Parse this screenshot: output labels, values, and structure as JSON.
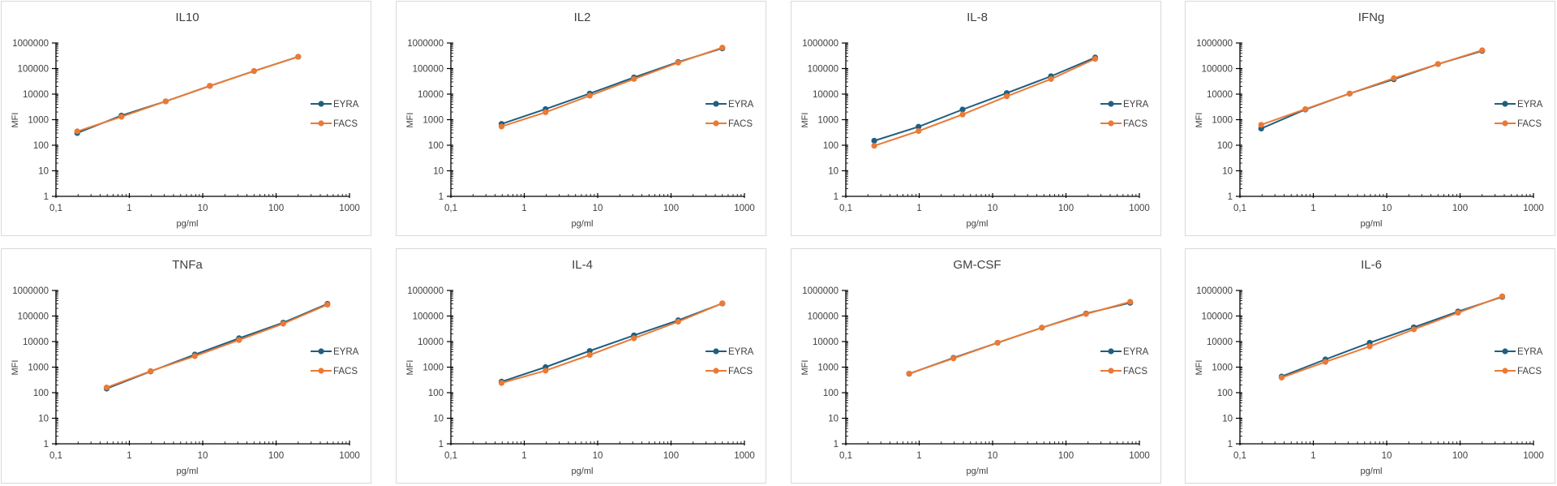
{
  "legend": {
    "series": [
      {
        "name": "EYRA",
        "color": "#1f5f80"
      },
      {
        "name": "FACS",
        "color": "#ea7a36"
      }
    ]
  },
  "chart_data": [
    {
      "type": "line",
      "title": "IL10",
      "xlabel": "pg/ml",
      "ylabel": "MFI",
      "xscale": "log",
      "yscale": "log",
      "xlim": [
        0.1,
        1000
      ],
      "ylim": [
        1,
        1000000
      ],
      "xticks": [
        "0,1",
        "1",
        "10",
        "100",
        "1000"
      ],
      "yticks": [
        "1",
        "10",
        "100",
        "1000",
        "10000",
        "100000",
        "1000000"
      ],
      "legend": "right",
      "x": [
        0.195,
        0.78,
        3.125,
        12.5,
        50,
        200
      ],
      "series": [
        {
          "name": "EYRA",
          "values": [
            300,
            1450,
            5200,
            21000,
            80000,
            290000
          ]
        },
        {
          "name": "FACS",
          "values": [
            350,
            1300,
            5200,
            21000,
            80000,
            290000
          ]
        }
      ]
    },
    {
      "type": "line",
      "title": "IL2",
      "xlabel": "pg/ml",
      "ylabel": "MFI",
      "xscale": "log",
      "yscale": "log",
      "xlim": [
        0.1,
        1000
      ],
      "ylim": [
        1,
        1000000
      ],
      "xticks": [
        "0,1",
        "1",
        "10",
        "100",
        "1000"
      ],
      "yticks": [
        "1",
        "10",
        "100",
        "1000",
        "10000",
        "100000",
        "1000000"
      ],
      "legend": "right",
      "x": [
        0.49,
        1.95,
        7.8,
        31.25,
        125,
        500
      ],
      "series": [
        {
          "name": "EYRA",
          "values": [
            680,
            2600,
            10500,
            45000,
            180000,
            620000
          ]
        },
        {
          "name": "FACS",
          "values": [
            540,
            1950,
            8700,
            39000,
            170000,
            660000
          ]
        }
      ]
    },
    {
      "type": "line",
      "title": "IL-8",
      "xlabel": "pg/ml",
      "ylabel": "MFI",
      "xscale": "log",
      "yscale": "log",
      "xlim": [
        0.1,
        1000
      ],
      "ylim": [
        1,
        1000000
      ],
      "xticks": [
        "0,1",
        "1",
        "10",
        "100",
        "1000"
      ],
      "yticks": [
        "1",
        "10",
        "100",
        "1000",
        "10000",
        "100000",
        "1000000"
      ],
      "legend": "right",
      "x": [
        0.244,
        0.98,
        3.9,
        15.6,
        62.5,
        250
      ],
      "series": [
        {
          "name": "EYRA",
          "values": [
            150,
            530,
            2500,
            11000,
            50000,
            270000
          ]
        },
        {
          "name": "FACS",
          "values": [
            95,
            360,
            1600,
            8200,
            39000,
            240000
          ]
        }
      ]
    },
    {
      "type": "line",
      "title": "IFNg",
      "xlabel": "pg/ml",
      "ylabel": "MFI",
      "xscale": "log",
      "yscale": "log",
      "xlim": [
        0.1,
        1000
      ],
      "ylim": [
        1,
        1000000
      ],
      "xticks": [
        "0,1",
        "1",
        "10",
        "100",
        "1000"
      ],
      "yticks": [
        "1",
        "10",
        "100",
        "1000",
        "10000",
        "100000",
        "1000000"
      ],
      "legend": "right",
      "x": [
        0.195,
        0.78,
        3.125,
        12.5,
        50,
        200
      ],
      "series": [
        {
          "name": "EYRA",
          "values": [
            450,
            2500,
            10500,
            38000,
            150000,
            490000
          ]
        },
        {
          "name": "FACS",
          "values": [
            630,
            2600,
            10500,
            42000,
            150000,
            520000
          ]
        }
      ]
    },
    {
      "type": "line",
      "title": "TNFa",
      "xlabel": "pg/ml",
      "ylabel": "MFI",
      "xscale": "log",
      "yscale": "log",
      "xlim": [
        0.1,
        1000
      ],
      "ylim": [
        1,
        1000000
      ],
      "xticks": [
        "0,1",
        "1",
        "10",
        "100",
        "1000"
      ],
      "yticks": [
        "1",
        "10",
        "100",
        "1000",
        "10000",
        "100000",
        "1000000"
      ],
      "legend": "right",
      "x": [
        0.49,
        1.95,
        7.8,
        31.25,
        125,
        500
      ],
      "series": [
        {
          "name": "EYRA",
          "values": [
            145,
            680,
            3100,
            13500,
            55000,
            300000
          ]
        },
        {
          "name": "FACS",
          "values": [
            160,
            700,
            2700,
            11500,
            50000,
            280000
          ]
        }
      ]
    },
    {
      "type": "line",
      "title": "IL-4",
      "xlabel": "pg/ml",
      "ylabel": "MFI",
      "xscale": "log",
      "yscale": "log",
      "xlim": [
        0.1,
        1000
      ],
      "ylim": [
        1,
        1000000
      ],
      "xticks": [
        "0,1",
        "1",
        "10",
        "100",
        "1000"
      ],
      "yticks": [
        "1",
        "10",
        "100",
        "1000",
        "10000",
        "100000",
        "1000000"
      ],
      "legend": "right",
      "x": [
        0.49,
        1.95,
        7.8,
        31.25,
        125,
        500
      ],
      "series": [
        {
          "name": "EYRA",
          "values": [
            270,
            1000,
            4300,
            17500,
            68000,
            310000
          ]
        },
        {
          "name": "FACS",
          "values": [
            240,
            730,
            3000,
            13500,
            60000,
            315000
          ]
        }
      ]
    },
    {
      "type": "line",
      "title": "GM-CSF",
      "xlabel": "pg/ml",
      "ylabel": "MFI",
      "xscale": "log",
      "yscale": "log",
      "xlim": [
        0.1,
        1000
      ],
      "ylim": [
        1,
        1000000
      ],
      "xticks": [
        "0,1",
        "1",
        "10",
        "100",
        "1000"
      ],
      "yticks": [
        "1",
        "10",
        "100",
        "1000",
        "10000",
        "100000",
        "1000000"
      ],
      "legend": "right",
      "x": [
        0.73,
        2.93,
        11.7,
        46.9,
        187.5,
        750
      ],
      "series": [
        {
          "name": "EYRA",
          "values": [
            550,
            2300,
            9000,
            35000,
            125000,
            330000
          ]
        },
        {
          "name": "FACS",
          "values": [
            560,
            2200,
            9000,
            35000,
            120000,
            360000
          ]
        }
      ]
    },
    {
      "type": "line",
      "title": "IL-6",
      "xlabel": "pg/ml",
      "ylabel": "MFI",
      "xscale": "log",
      "yscale": "log",
      "xlim": [
        0.1,
        1000
      ],
      "ylim": [
        1,
        1000000
      ],
      "xticks": [
        "0,1",
        "1",
        "10",
        "100",
        "1000"
      ],
      "yticks": [
        "1",
        "10",
        "100",
        "1000",
        "10000",
        "100000",
        "1000000"
      ],
      "legend": "right",
      "x": [
        0.37,
        1.46,
        5.86,
        23.4,
        93.75,
        375
      ],
      "series": [
        {
          "name": "EYRA",
          "values": [
            430,
            2000,
            9000,
            36000,
            150000,
            560000
          ]
        },
        {
          "name": "FACS",
          "values": [
            390,
            1600,
            6500,
            30000,
            135000,
            590000
          ]
        }
      ]
    }
  ]
}
